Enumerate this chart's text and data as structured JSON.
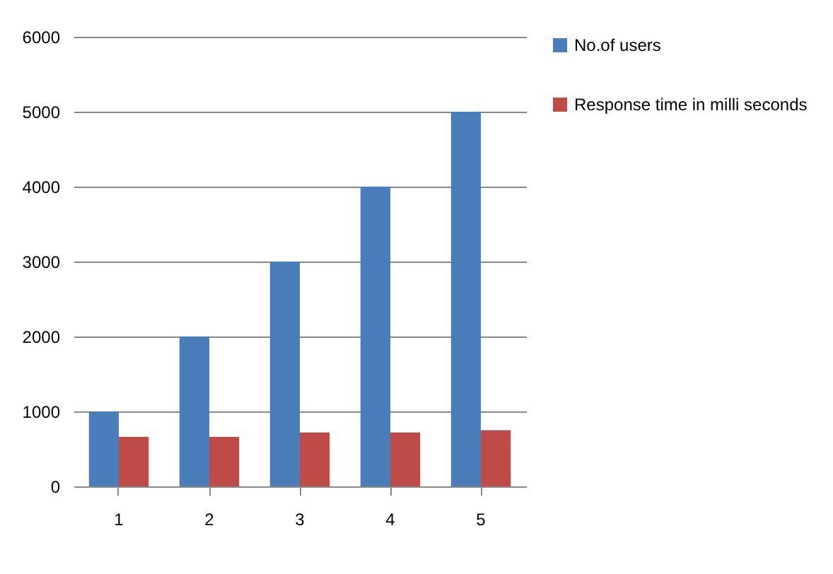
{
  "chart_data": {
    "type": "bar",
    "categories": [
      "1",
      "2",
      "3",
      "4",
      "5"
    ],
    "series": [
      {
        "name": "No.of users",
        "color": "#4a7ebb",
        "values": [
          1000,
          2000,
          3000,
          4000,
          5000
        ]
      },
      {
        "name": "Response time in milli seconds",
        "color": "#be4b48",
        "values": [
          660,
          660,
          720,
          720,
          750
        ]
      }
    ],
    "ylim": [
      0,
      6000
    ],
    "yticks": [
      0,
      1000,
      2000,
      3000,
      4000,
      5000,
      6000
    ],
    "grid": "y",
    "legend": "right"
  }
}
